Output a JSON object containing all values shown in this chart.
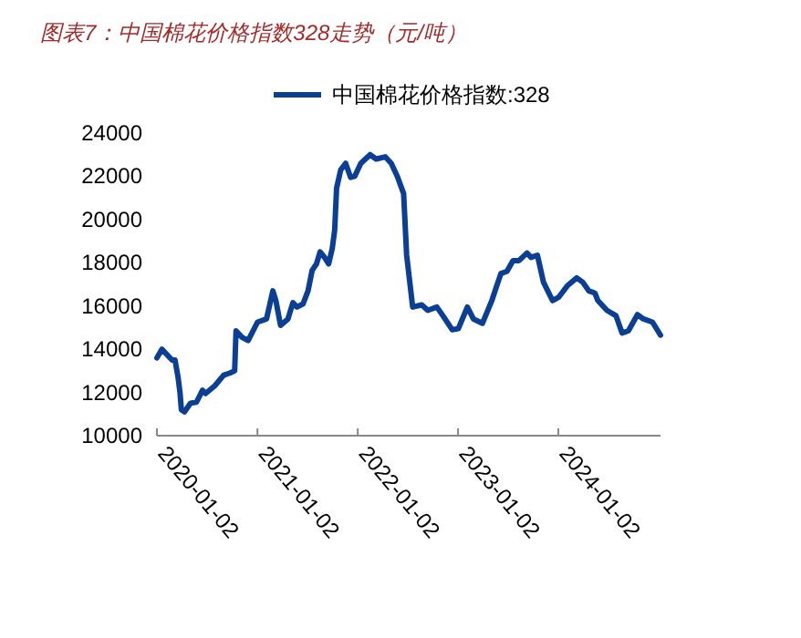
{
  "chart_data": {
    "type": "line",
    "title": "图表7：中国棉花价格指数328走势（元/吨）",
    "legend": "top",
    "xlim": [
      "2020-01-02",
      "2025-01-08"
    ],
    "xticks": [
      "2020-01-02",
      "2021-01-02",
      "2022-01-02",
      "2023-01-02",
      "2024-01-02"
    ],
    "ylim": [
      10000,
      24000
    ],
    "yticks": [
      10000,
      12000,
      14000,
      16000,
      18000,
      20000,
      22000,
      24000
    ],
    "series": [
      {
        "name": "中国棉花价格指数:328",
        "color": "#0b3f96",
        "x": [
          "2020-01-02",
          "2020-01-20",
          "2020-02-26",
          "2020-03-08",
          "2020-03-19",
          "2020-03-26",
          "2020-03-31",
          "2020-04-11",
          "2020-05-03",
          "2020-05-25",
          "2020-06-16",
          "2020-06-27",
          "2020-07-30",
          "2020-09-01",
          "2020-09-24",
          "2020-10-11",
          "2020-10-16",
          "2020-11-07",
          "2020-11-29",
          "2021-01-02",
          "2021-02-04",
          "2021-02-27",
          "2021-03-10",
          "2021-03-27",
          "2021-04-23",
          "2021-05-11",
          "2021-05-26",
          "2021-06-17",
          "2021-07-05",
          "2021-07-20",
          "2021-08-05",
          "2021-08-18",
          "2021-09-03",
          "2021-09-18",
          "2021-10-01",
          "2021-10-10",
          "2021-10-17",
          "2021-11-01",
          "2021-11-19",
          "2021-12-07",
          "2021-12-22",
          "2022-01-13",
          "2022-02-16",
          "2022-03-10",
          "2022-04-12",
          "2022-05-04",
          "2022-05-26",
          "2022-06-18",
          "2022-06-29",
          "2022-07-21",
          "2022-08-23",
          "2022-09-14",
          "2022-10-17",
          "2022-11-08",
          "2022-12-12",
          "2023-01-03",
          "2023-02-05",
          "2023-02-27",
          "2023-04-01",
          "2023-05-05",
          "2023-06-07",
          "2023-06-29",
          "2023-07-21",
          "2023-08-12",
          "2023-09-10",
          "2023-09-25",
          "2023-10-18",
          "2023-11-09",
          "2023-12-12",
          "2024-01-03",
          "2024-02-05",
          "2024-03-09",
          "2024-03-31",
          "2024-04-22",
          "2024-05-14",
          "2024-05-25",
          "2024-06-27",
          "2024-07-30",
          "2024-08-21",
          "2024-09-13",
          "2024-10-16",
          "2024-11-07",
          "2024-12-10",
          "2025-01-08"
        ],
        "values": [
          13600,
          14000,
          13500,
          13500,
          12700,
          12000,
          11200,
          11100,
          11500,
          11550,
          12100,
          11950,
          12300,
          12800,
          12900,
          13000,
          14850,
          14550,
          14400,
          15250,
          15400,
          16700,
          16250,
          15100,
          15400,
          16150,
          15950,
          16100,
          16700,
          17650,
          17950,
          18500,
          18250,
          17950,
          18650,
          19500,
          21450,
          22300,
          22600,
          21950,
          22000,
          22600,
          23000,
          22800,
          22900,
          22600,
          22000,
          21200,
          18350,
          15950,
          16050,
          15800,
          15950,
          15550,
          14900,
          14950,
          15950,
          15400,
          15200,
          16250,
          17500,
          17600,
          18100,
          18100,
          18450,
          18250,
          18350,
          17100,
          16250,
          16400,
          16950,
          17300,
          17100,
          16700,
          16600,
          16250,
          15800,
          15550,
          14750,
          14850,
          15600,
          15400,
          15250,
          14650
        ]
      }
    ]
  }
}
